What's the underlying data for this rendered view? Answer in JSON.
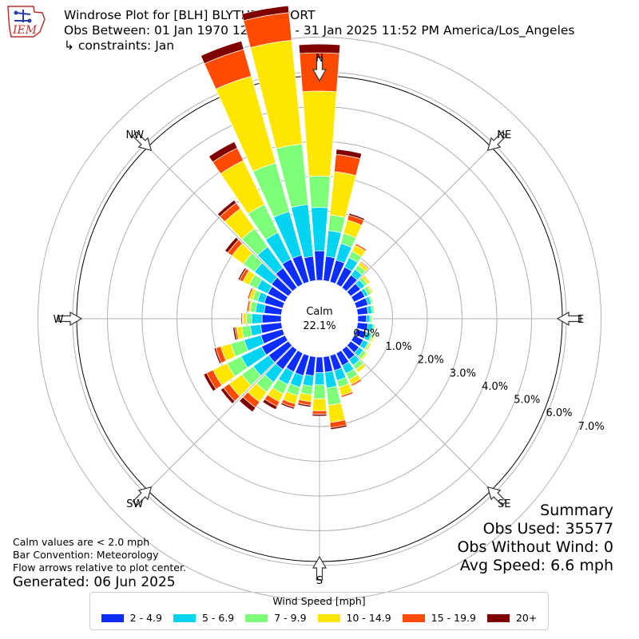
{
  "logo": {
    "text": "IEM"
  },
  "header": {
    "title": "Windrose Plot for [BLH] BLYTHE AIRPORT",
    "obs_between": "Obs Between: 01 Jan 1970 12:00 AM - 31 Jan 2025 11:52 PM America/Los_Angeles",
    "constraints": "↳ constraints: Jan"
  },
  "notes": {
    "calm_note": "Calm values are < 2.0 mph",
    "bar_convention": "Bar Convention: Meteorology",
    "flow_arrows": "Flow arrows relative to plot center.",
    "generated": "Generated: 06 Jun 2025"
  },
  "summary": {
    "title": "Summary",
    "obs_used": "Obs Used: 35577",
    "obs_without_wind": "Obs Without Wind: 0",
    "avg_speed": "Avg Speed: 6.6 mph"
  },
  "legend": {
    "title": "Wind Speed [mph]",
    "items": [
      {
        "label": "2 - 4.9",
        "color": "#0b2dff"
      },
      {
        "label": "5 - 6.9",
        "color": "#00d4f0"
      },
      {
        "label": "7 - 9.9",
        "color": "#7dff7a"
      },
      {
        "label": "10 - 14.9",
        "color": "#ffe600"
      },
      {
        "label": "15 - 19.9",
        "color": "#ff4a00"
      },
      {
        "label": "20+",
        "color": "#800000"
      }
    ]
  },
  "chart_data": {
    "type": "windrose",
    "calm": {
      "label": "Calm",
      "value_text": "22.1%",
      "value": 22.1
    },
    "radial_ticks": [
      0,
      1,
      2,
      3,
      4,
      5,
      6,
      7
    ],
    "radial_tick_labels": [
      "0.0%",
      "1.0%",
      "2.0%",
      "3.0%",
      "4.0%",
      "5.0%",
      "6.0%",
      "7.0%"
    ],
    "direction_labels": [
      "N",
      "NE",
      "E",
      "SE",
      "S",
      "SW",
      "W",
      "NW"
    ],
    "direction_angles": [
      0,
      45,
      90,
      135,
      180,
      225,
      270,
      315
    ],
    "direction_bins_deg": [
      0,
      10,
      20,
      30,
      40,
      50,
      60,
      70,
      80,
      90,
      100,
      110,
      120,
      130,
      140,
      150,
      160,
      170,
      180,
      190,
      200,
      210,
      220,
      230,
      240,
      250,
      260,
      270,
      280,
      290,
      300,
      310,
      320,
      330,
      340,
      350
    ],
    "speed_bins": [
      "2 - 4.9",
      "5 - 6.9",
      "7 - 9.9",
      "10 - 14.9",
      "15 - 19.9",
      "20+"
    ],
    "cumulative_percent": [
      [
        0.85,
        2.1,
        3.0,
        5.45,
        6.55,
        6.8
      ],
      [
        0.7,
        1.45,
        1.9,
        3.15,
        3.65,
        3.8
      ],
      [
        0.65,
        1.15,
        1.45,
        1.85,
        2.0,
        2.05
      ],
      [
        0.55,
        0.85,
        1.05,
        1.25,
        1.3,
        1.3
      ],
      [
        0.45,
        0.65,
        0.8,
        0.9,
        0.93,
        0.95
      ],
      [
        0.35,
        0.5,
        0.6,
        0.68,
        0.7,
        0.7
      ],
      [
        0.35,
        0.45,
        0.55,
        0.6,
        0.62,
        0.62
      ],
      [
        0.35,
        0.45,
        0.5,
        0.52,
        0.53,
        0.53
      ],
      [
        0.3,
        0.42,
        0.48,
        0.5,
        0.5,
        0.5
      ],
      [
        0.25,
        0.35,
        0.4,
        0.42,
        0.42,
        0.42
      ],
      [
        0.3,
        0.45,
        0.5,
        0.52,
        0.52,
        0.52
      ],
      [
        0.3,
        0.45,
        0.5,
        0.55,
        0.55,
        0.55
      ],
      [
        0.3,
        0.45,
        0.5,
        0.55,
        0.55,
        0.55
      ],
      [
        0.3,
        0.45,
        0.55,
        0.6,
        0.6,
        0.6
      ],
      [
        0.35,
        0.55,
        0.7,
        0.8,
        0.8,
        0.8
      ],
      [
        0.4,
        0.65,
        0.85,
        1.0,
        1.05,
        1.05
      ],
      [
        0.45,
        0.75,
        0.95,
        1.2,
        1.25,
        1.25
      ],
      [
        0.45,
        0.9,
        1.4,
        1.9,
        2.05,
        2.1
      ],
      [
        0.45,
        0.8,
        1.2,
        1.55,
        1.65,
        1.7
      ],
      [
        0.55,
        0.85,
        1.1,
        1.3,
        1.4,
        1.45
      ],
      [
        0.6,
        0.95,
        1.2,
        1.45,
        1.55,
        1.6
      ],
      [
        0.6,
        1.0,
        1.3,
        1.55,
        1.7,
        1.8
      ],
      [
        0.7,
        1.15,
        1.5,
        1.85,
        2.05,
        2.2
      ],
      [
        0.7,
        1.25,
        1.65,
        2.1,
        2.3,
        2.4
      ],
      [
        0.75,
        1.4,
        1.85,
        2.3,
        2.5,
        2.6
      ],
      [
        0.65,
        1.15,
        1.55,
        1.85,
        2.0,
        2.05
      ],
      [
        0.6,
        0.9,
        1.15,
        1.3,
        1.35,
        1.4
      ],
      [
        0.55,
        0.85,
        1.0,
        1.1,
        1.12,
        1.15
      ],
      [
        0.5,
        0.75,
        0.9,
        0.95,
        1.0,
        1.0
      ],
      [
        0.55,
        0.75,
        0.9,
        1.0,
        1.05,
        1.05
      ],
      [
        0.55,
        0.9,
        1.15,
        1.35,
        1.45,
        1.5
      ],
      [
        0.6,
        1.2,
        1.6,
        2.0,
        2.15,
        2.25
      ],
      [
        0.7,
        1.45,
        2.1,
        2.8,
        3.0,
        3.1
      ],
      [
        0.8,
        1.65,
        2.55,
        3.95,
        4.35,
        4.55
      ],
      [
        0.8,
        2.1,
        3.55,
        6.15,
        6.95,
        7.2
      ],
      [
        0.7,
        2.2,
        3.95,
        6.95,
        7.75,
        7.95
      ]
    ]
  }
}
